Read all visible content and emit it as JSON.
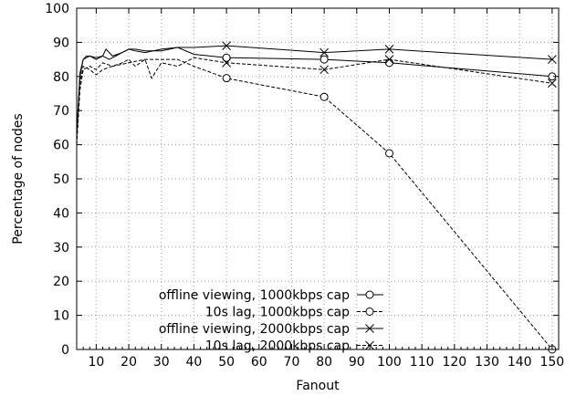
{
  "chart_data": {
    "type": "line",
    "title": "",
    "xlabel": "Fanout",
    "ylabel": "Percentage of nodes",
    "xlim": [
      4,
      152
    ],
    "ylim": [
      0,
      100
    ],
    "x_ticks": [
      10,
      20,
      30,
      40,
      50,
      60,
      70,
      80,
      90,
      100,
      110,
      120,
      130,
      140,
      150
    ],
    "y_ticks": [
      0,
      10,
      20,
      30,
      40,
      50,
      60,
      70,
      80,
      90,
      100
    ],
    "grid": true,
    "legend_position": "bottom-left",
    "series": [
      {
        "name": "offline viewing, 1000kbps cap",
        "line_style": "solid",
        "marker": "circle",
        "points": [
          [
            4,
            62
          ],
          [
            5,
            80
          ],
          [
            6,
            85
          ],
          [
            7,
            86
          ],
          [
            8,
            86
          ],
          [
            10,
            85
          ],
          [
            12,
            86
          ],
          [
            14,
            85
          ],
          [
            16,
            86
          ],
          [
            18,
            87
          ],
          [
            20,
            88
          ],
          [
            22,
            88
          ],
          [
            25,
            87.5
          ],
          [
            30,
            87.5
          ],
          [
            35,
            88.5
          ],
          [
            40,
            86.5
          ],
          [
            50,
            85.5
          ],
          [
            80,
            85
          ],
          [
            100,
            84
          ],
          [
            150,
            80
          ]
        ],
        "marked_x": [
          50,
          80,
          100,
          150
        ]
      },
      {
        "name": "10s lag, 1000kbps cap",
        "line_style": "dashed",
        "marker": "circle",
        "points": [
          [
            4,
            60
          ],
          [
            5,
            76
          ],
          [
            6,
            82
          ],
          [
            8,
            83
          ],
          [
            10,
            82
          ],
          [
            12,
            84
          ],
          [
            15,
            83
          ],
          [
            20,
            84
          ],
          [
            25,
            85
          ],
          [
            30,
            85
          ],
          [
            35,
            85
          ],
          [
            40,
            83
          ],
          [
            50,
            79.5
          ],
          [
            80,
            74
          ],
          [
            100,
            57.5
          ],
          [
            150,
            0
          ]
        ],
        "marked_x": [
          50,
          80,
          100,
          150
        ]
      },
      {
        "name": "offline viewing, 2000kbps cap",
        "line_style": "solid",
        "marker": "x",
        "points": [
          [
            4,
            63
          ],
          [
            5,
            81
          ],
          [
            6,
            85
          ],
          [
            8,
            86
          ],
          [
            10,
            85.5
          ],
          [
            12,
            86
          ],
          [
            13,
            88
          ],
          [
            15,
            86
          ],
          [
            18,
            87
          ],
          [
            20,
            88
          ],
          [
            22,
            87.5
          ],
          [
            25,
            87
          ],
          [
            30,
            88
          ],
          [
            35,
            88.5
          ],
          [
            40,
            88.5
          ],
          [
            50,
            89
          ],
          [
            80,
            87
          ],
          [
            100,
            88
          ],
          [
            150,
            85
          ]
        ],
        "marked_x": [
          50,
          80,
          100,
          150
        ]
      },
      {
        "name": "10s lag, 2000kbps cap",
        "line_style": "dashed",
        "marker": "x",
        "points": [
          [
            4,
            60
          ],
          [
            5,
            78
          ],
          [
            6,
            83
          ],
          [
            8,
            82
          ],
          [
            10,
            80.5
          ],
          [
            12,
            82
          ],
          [
            15,
            83
          ],
          [
            18,
            84
          ],
          [
            20,
            85
          ],
          [
            22,
            83
          ],
          [
            25,
            85
          ],
          [
            27,
            79.5
          ],
          [
            30,
            84
          ],
          [
            35,
            83
          ],
          [
            40,
            85.5
          ],
          [
            50,
            84
          ],
          [
            80,
            82
          ],
          [
            100,
            85
          ],
          [
            150,
            78
          ]
        ],
        "marked_x": [
          50,
          80,
          100,
          150
        ]
      }
    ]
  },
  "colors": {
    "line": "#000000",
    "grid": "#9a9a9a",
    "background": "#ffffff"
  }
}
